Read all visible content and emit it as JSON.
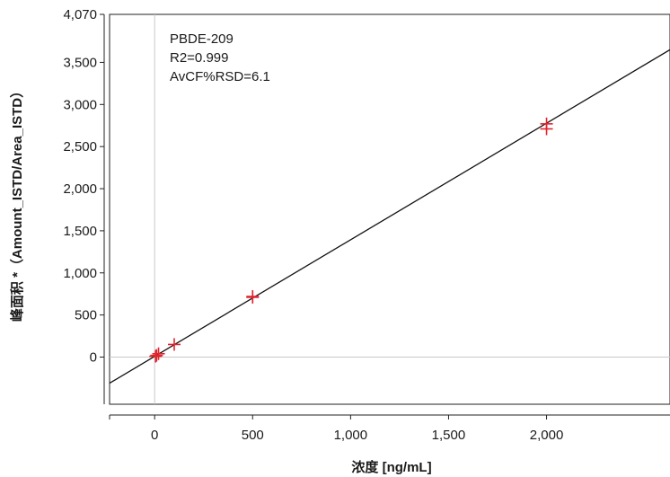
{
  "chart_data": {
    "type": "scatter",
    "xlabel": "浓度 [ng/mL]",
    "ylabel": "峰面积 *（Amount_ISTD/Area_ISTD）",
    "xlim": [
      -230,
      2630
    ],
    "ylim": [
      -560,
      4070
    ],
    "x_ticks": [
      {
        "value": 0,
        "label": "0"
      },
      {
        "value": 500,
        "label": "500"
      },
      {
        "value": 1000,
        "label": "1,000"
      },
      {
        "value": 1500,
        "label": "1,500"
      },
      {
        "value": 2000,
        "label": "2,000"
      }
    ],
    "y_ticks": [
      {
        "value": 0,
        "label": "0"
      },
      {
        "value": 500,
        "label": "500"
      },
      {
        "value": 1000,
        "label": "1,000"
      },
      {
        "value": 1500,
        "label": "1,500"
      },
      {
        "value": 2000,
        "label": "2,000"
      },
      {
        "value": 2500,
        "label": "2,500"
      },
      {
        "value": 3000,
        "label": "3,000"
      },
      {
        "value": 3500,
        "label": "3,500"
      },
      {
        "value": 4070,
        "label": "4,070"
      }
    ],
    "annotations": [
      "PBDE-209",
      "R2=0.999",
      "AvCF%RSD=6.1"
    ],
    "points": [
      {
        "x": 5,
        "y": 10
      },
      {
        "x": 10,
        "y": 20
      },
      {
        "x": 20,
        "y": 40
      },
      {
        "x": 100,
        "y": 150
      },
      {
        "x": 500,
        "y": 720
      },
      {
        "x": 500,
        "y": 710
      },
      {
        "x": 2000,
        "y": 2770
      },
      {
        "x": 2000,
        "y": 2710
      }
    ],
    "fit_line": {
      "x": [
        -230,
        2630
      ],
      "y": [
        -310,
        3650
      ]
    },
    "grid": false,
    "point_color": "#e0242e",
    "line_color": "#111111",
    "reference_line_color": "#c8c8c8"
  }
}
